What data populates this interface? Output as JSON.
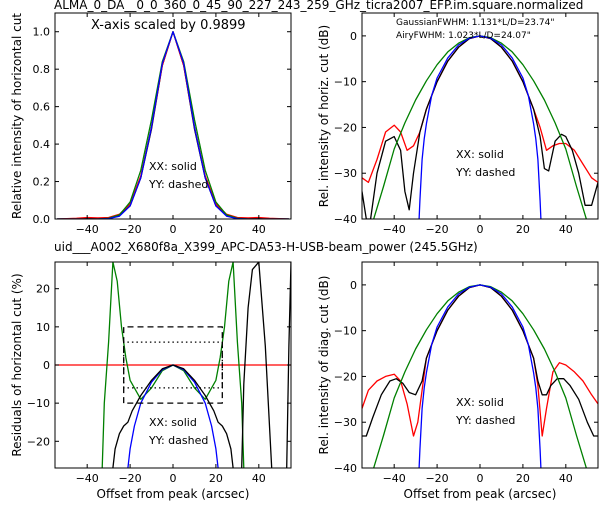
{
  "suptitle": "ALMA_0_DA__0_0_360_0_45_90_227_243_259_GHz_ticra2007_EFP.im.square.normalized",
  "subtitle": "uid___A002_X680f8a_X399_APC-DA53-H-USB-beam_power (245.5GHz)",
  "colors": {
    "subtitle": "#ff0000",
    "gaussian_label": "#008000",
    "airy_label": "#0000ff",
    "black": "#000000",
    "red": "#ff0000",
    "green": "#008000",
    "blue": "#0000ff"
  },
  "chart_data": [
    {
      "id": "top-left",
      "type": "line",
      "title": "",
      "xlabel": "",
      "ylabel": "Relative intensity of horizontal cut",
      "xlim": [
        -55,
        55
      ],
      "ylim": [
        0,
        1.1
      ],
      "xticks": [
        -40,
        -20,
        0,
        20,
        40
      ],
      "xtick_labels": [
        "−40",
        "−20",
        "0",
        "20",
        "40"
      ],
      "yticks": [
        0.0,
        0.2,
        0.4,
        0.6,
        0.8,
        1.0
      ],
      "ytick_labels": [
        "0.0",
        "0.2",
        "0.4",
        "0.6",
        "0.8",
        "1.0"
      ],
      "annotation": "X-axis scaled by 0.9899",
      "legend_text": [
        "XX: solid",
        "YY: dashed"
      ],
      "series": [
        {
          "kind": "black",
          "style": "solid",
          "x": [
            -54,
            -45,
            -40,
            -35,
            -30,
            -25,
            -20,
            -15,
            -10,
            -5,
            0,
            5,
            10,
            15,
            20,
            25,
            30,
            35,
            40,
            45,
            54
          ],
          "y": [
            0.0,
            0.002,
            0.004,
            0.004,
            0.006,
            0.02,
            0.07,
            0.22,
            0.48,
            0.82,
            1.0,
            0.82,
            0.48,
            0.22,
            0.07,
            0.02,
            0.006,
            0.004,
            0.004,
            0.002,
            0.0
          ]
        },
        {
          "kind": "red",
          "style": "solid",
          "x": [
            -54,
            -45,
            -40,
            -35,
            -30,
            -25,
            -20,
            -15,
            -10,
            -5,
            0,
            5,
            10,
            15,
            20,
            25,
            30,
            35,
            40,
            45,
            54
          ],
          "y": [
            0.0,
            0.004,
            0.008,
            0.006,
            0.008,
            0.025,
            0.08,
            0.23,
            0.49,
            0.82,
            1.0,
            0.82,
            0.49,
            0.23,
            0.08,
            0.025,
            0.008,
            0.006,
            0.008,
            0.004,
            0.0
          ]
        },
        {
          "kind": "green",
          "style": "solid",
          "x": [
            -54,
            -45,
            -40,
            -35,
            -30,
            -25,
            -20,
            -15,
            -10,
            -5,
            0,
            5,
            10,
            15,
            20,
            25,
            30,
            35,
            40,
            45,
            54
          ],
          "y": [
            0.0,
            0.0,
            0.0,
            0.0,
            0.004,
            0.022,
            0.09,
            0.26,
            0.53,
            0.84,
            1.0,
            0.84,
            0.53,
            0.26,
            0.09,
            0.022,
            0.004,
            0.0,
            0.0,
            0.0,
            0.0
          ]
        },
        {
          "kind": "blue",
          "style": "solid",
          "x": [
            -54,
            -45,
            -40,
            -35,
            -30,
            -25,
            -20,
            -15,
            -10,
            -5,
            0,
            5,
            10,
            15,
            20,
            25,
            30,
            35,
            40,
            45,
            54
          ],
          "y": [
            0.0,
            0.0,
            0.0,
            0.0,
            0.002,
            0.015,
            0.07,
            0.22,
            0.49,
            0.83,
            1.0,
            0.83,
            0.49,
            0.22,
            0.07,
            0.015,
            0.002,
            0.0,
            0.0,
            0.0,
            0.0
          ]
        }
      ]
    },
    {
      "id": "top-right",
      "type": "line",
      "title": "",
      "xlabel": "",
      "ylabel": "Rel. intensity of horiz. cut (dB)",
      "xlim": [
        -55,
        55
      ],
      "ylim": [
        -40,
        5
      ],
      "xticks": [
        -40,
        -20,
        0,
        20,
        40
      ],
      "xtick_labels": [
        "−40",
        "−20",
        "0",
        "20",
        "40"
      ],
      "yticks": [
        -40,
        -30,
        -20,
        -10,
        0
      ],
      "ytick_labels": [
        "−40",
        "−30",
        "−20",
        "−10",
        "0"
      ],
      "fit_labels": [
        {
          "text": "GaussianFWHM: 1.131*L/D=23.74\"",
          "kind": "green"
        },
        {
          "text": "AiryFWHM: 1.023*L/D=24.07\"",
          "kind": "blue"
        }
      ],
      "legend_text": [
        "XX: solid",
        "YY: dashed"
      ],
      "series": [
        {
          "kind": "red",
          "style": "solid",
          "x": [
            -55,
            -52,
            -48,
            -44,
            -40,
            -37,
            -34,
            -31,
            -28,
            -25,
            -20,
            -15,
            -10,
            -5,
            0,
            5,
            10,
            15,
            20,
            25,
            28,
            31,
            34,
            37,
            40,
            44,
            48,
            52,
            55
          ],
          "y": [
            -31,
            -32,
            -27,
            -21,
            -19.5,
            -21,
            -25,
            -24,
            -21,
            -16,
            -10,
            -5.5,
            -2.5,
            -0.6,
            0,
            -0.6,
            -2.5,
            -5.5,
            -10,
            -16,
            -20,
            -25,
            -24,
            -23.5,
            -23.5,
            -25,
            -28,
            -31,
            -32
          ]
        },
        {
          "kind": "black",
          "style": "solid",
          "x": [
            -55,
            -53,
            -51,
            -48,
            -44,
            -40,
            -37,
            -35,
            -33,
            -31,
            -28,
            -25,
            -20,
            -15,
            -10,
            -5,
            0,
            5,
            10,
            15,
            20,
            25,
            28,
            30,
            32,
            35,
            38,
            40,
            43,
            46,
            49,
            52,
            55
          ],
          "y": [
            -34,
            -40,
            -40,
            -30,
            -23,
            -22,
            -25,
            -34,
            -38,
            -30,
            -21,
            -16,
            -10,
            -5.5,
            -2.5,
            -0.6,
            0,
            -0.6,
            -2.5,
            -5.5,
            -10,
            -16,
            -22,
            -29,
            -29.5,
            -23,
            -21.5,
            -22,
            -25,
            -30,
            -37,
            -37,
            -32
          ]
        },
        {
          "kind": "green",
          "style": "solid",
          "x": [
            -54,
            -50,
            -45,
            -40,
            -35,
            -30,
            -25,
            -20,
            -15,
            -10,
            -5,
            0,
            5,
            10,
            15,
            20,
            25,
            30,
            35,
            40,
            45,
            50,
            54
          ],
          "y": [
            -41,
            -40.7,
            -32.9,
            -24.7,
            -19,
            -14,
            -9.8,
            -6.3,
            -3.5,
            -1.6,
            -0.4,
            0,
            -0.4,
            -1.6,
            -3.5,
            -6.3,
            -9.8,
            -14,
            -19,
            -24.7,
            -32.9,
            -40.7,
            -41
          ]
        },
        {
          "kind": "blue",
          "style": "solid",
          "x": [
            -28.5,
            -28,
            -27,
            -26,
            -25,
            -22.5,
            -20,
            -15,
            -10,
            -5,
            0,
            5,
            10,
            15,
            20,
            22.5,
            25,
            26,
            27,
            28,
            28.5
          ],
          "y": [
            -41,
            -36,
            -27,
            -22.5,
            -19.2,
            -13,
            -9.2,
            -4.8,
            -2,
            -0.5,
            0,
            -0.5,
            -2,
            -4.8,
            -9.2,
            -13,
            -19.2,
            -22.5,
            -27,
            -36,
            -41
          ]
        }
      ]
    },
    {
      "id": "bottom-left",
      "type": "line",
      "title": "",
      "xlabel": "Offset from peak (arcsec)",
      "ylabel": "Residuals of horizontal cut (%)",
      "xlim": [
        -55,
        55
      ],
      "ylim": [
        -27,
        27
      ],
      "xticks": [
        -40,
        -20,
        0,
        20,
        40
      ],
      "xtick_labels": [
        "−40",
        "−20",
        "0",
        "20",
        "40"
      ],
      "yticks": [
        -20,
        -10,
        0,
        10,
        20
      ],
      "ytick_labels": [
        "−20",
        "−10",
        "0",
        "10",
        "20"
      ],
      "legend_text": [
        "XX: solid",
        "YY: dashed"
      ],
      "series": [
        {
          "kind": "red",
          "style": "solid",
          "x": [
            -55,
            55
          ],
          "y": [
            0,
            0
          ]
        },
        {
          "kind": "green",
          "style": "solid",
          "x": [
            -33,
            -32,
            -30,
            -28,
            -26,
            -24,
            -22,
            -20,
            -15,
            -10,
            -5,
            0,
            5,
            10,
            15,
            20,
            22,
            24,
            26,
            28,
            30,
            32,
            33
          ],
          "y": [
            -27,
            -10,
            6,
            27,
            22,
            10,
            2,
            -4,
            -9,
            -6,
            -1.5,
            0,
            -1.5,
            -6,
            -9,
            -4,
            2,
            10,
            22,
            27,
            6,
            -10,
            -27
          ]
        },
        {
          "kind": "blue",
          "style": "solid",
          "x": [
            -21,
            -20,
            -18,
            -15,
            -10,
            -5,
            0,
            5,
            10,
            15,
            18,
            20,
            21
          ],
          "y": [
            -27,
            -22,
            -16,
            -10,
            -4.5,
            -1.2,
            0,
            -1.2,
            -4.5,
            -10,
            -16,
            -22,
            -27
          ]
        },
        {
          "kind": "black",
          "style": "solid",
          "x": [
            -28,
            -27,
            -25,
            -23,
            -21,
            -19,
            -15,
            -10,
            -5,
            0,
            5,
            10,
            15,
            19,
            21,
            23,
            25,
            27,
            28
          ],
          "y": [
            -27,
            -22,
            -18,
            -16,
            -15,
            -12,
            -8,
            -4,
            -1,
            0,
            -1,
            -4,
            -8,
            -12,
            -15,
            -16,
            -18,
            -22,
            -27
          ]
        },
        {
          "kind": "black",
          "style": "solid",
          "x": [
            32,
            33,
            35,
            37,
            40,
            43,
            46
          ],
          "y": [
            -27,
            -5,
            15,
            25,
            27,
            5,
            -27
          ]
        },
        {
          "kind": "black",
          "style": "solid",
          "x": [
            53,
            54,
            55
          ],
          "y": [
            -27,
            5,
            27
          ]
        },
        {
          "kind": "black",
          "style": "dashed",
          "x": [
            -23,
            -23,
            23,
            23,
            -23
          ],
          "y": [
            -10,
            10,
            10,
            -10,
            -10
          ]
        },
        {
          "kind": "black",
          "style": "dotted",
          "x": [
            -23,
            -23,
            23,
            23,
            -23
          ],
          "y": [
            -6,
            6,
            6,
            -6,
            -6
          ]
        }
      ]
    },
    {
      "id": "bottom-right",
      "type": "line",
      "title": "",
      "xlabel": "Offset from peak (arcsec)",
      "ylabel": "Rel. intensity of diag. cut (dB)",
      "xlim": [
        -55,
        55
      ],
      "ylim": [
        -40,
        5
      ],
      "xticks": [
        -40,
        -20,
        0,
        20,
        40
      ],
      "xtick_labels": [
        "−40",
        "−20",
        "0",
        "20",
        "40"
      ],
      "yticks": [
        -40,
        -30,
        -20,
        -10,
        0
      ],
      "ytick_labels": [
        "−40",
        "−30",
        "−20",
        "−10",
        "0"
      ],
      "legend_text": [
        "XX: solid",
        "YY: dashed"
      ],
      "series": [
        {
          "kind": "red",
          "style": "solid",
          "x": [
            -55,
            -52,
            -48,
            -44,
            -40,
            -37,
            -34,
            -31,
            -29,
            -25,
            -20,
            -15,
            -10,
            -5,
            0,
            5,
            10,
            15,
            20,
            25,
            27,
            29,
            31,
            34,
            37,
            40,
            44,
            48,
            52,
            55
          ],
          "y": [
            -27,
            -23,
            -21,
            -20,
            -19.5,
            -21,
            -26,
            -33,
            -30,
            -16,
            -10,
            -5.5,
            -2.5,
            -0.6,
            0,
            -0.6,
            -2.5,
            -5.5,
            -10,
            -16,
            -22,
            -33,
            -27,
            -19,
            -17,
            -17.5,
            -19,
            -21,
            -24,
            -26
          ]
        },
        {
          "kind": "black",
          "style": "solid",
          "x": [
            -55,
            -53,
            -50,
            -46,
            -42,
            -39,
            -36,
            -33,
            -30,
            -27,
            -25,
            -20,
            -15,
            -10,
            -5,
            0,
            5,
            10,
            15,
            20,
            25,
            27,
            29,
            31,
            33,
            36,
            39,
            42,
            46,
            50,
            53,
            55
          ],
          "y": [
            -33,
            -33,
            -29,
            -24,
            -21,
            -20.5,
            -21.5,
            -23.5,
            -24,
            -21,
            -16,
            -10,
            -5.5,
            -2.5,
            -0.6,
            0,
            -0.6,
            -2.5,
            -5.5,
            -10,
            -16,
            -21,
            -24,
            -24,
            -22,
            -20.5,
            -20.5,
            -22,
            -25,
            -30,
            -33,
            -33
          ]
        },
        {
          "kind": "green",
          "style": "solid",
          "x": [
            -54,
            -50,
            -45,
            -40,
            -35,
            -30,
            -25,
            -20,
            -15,
            -10,
            -5,
            0,
            5,
            10,
            15,
            20,
            25,
            30,
            35,
            40,
            45,
            50,
            54
          ],
          "y": [
            -41,
            -40.7,
            -32.9,
            -24.7,
            -19,
            -14,
            -9.8,
            -6.3,
            -3.5,
            -1.6,
            -0.4,
            0,
            -0.4,
            -1.6,
            -3.5,
            -6.3,
            -9.8,
            -14,
            -19,
            -24.7,
            -32.9,
            -40.7,
            -41
          ]
        },
        {
          "kind": "blue",
          "style": "solid",
          "x": [
            -28.5,
            -28,
            -27,
            -26,
            -25,
            -22.5,
            -20,
            -15,
            -10,
            -5,
            0,
            5,
            10,
            15,
            20,
            22.5,
            25,
            26,
            27,
            28,
            28.5
          ],
          "y": [
            -41,
            -36,
            -27,
            -22.5,
            -19.2,
            -13,
            -9.2,
            -4.8,
            -2,
            -0.5,
            0,
            -0.5,
            -2,
            -4.8,
            -9.2,
            -13,
            -19.2,
            -22.5,
            -27,
            -36,
            -41
          ]
        }
      ]
    }
  ]
}
